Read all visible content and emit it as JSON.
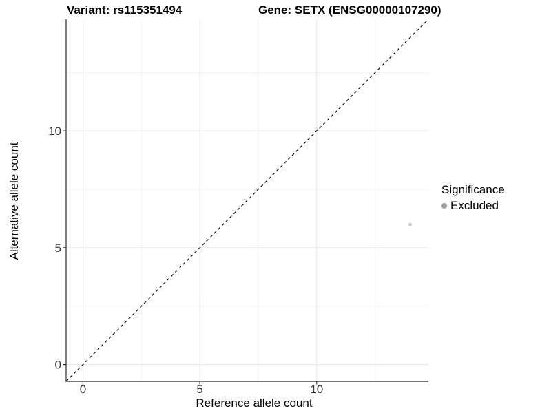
{
  "chart_data": {
    "type": "scatter",
    "title_left": "Variant: rs115351494",
    "title_right": "Gene: SETX (ENSG00000107290)",
    "xlabel": "Reference allele count",
    "ylabel": "Alternative allele count",
    "xlim": [
      -0.72,
      14.78
    ],
    "ylim": [
      -0.72,
      14.78
    ],
    "x_ticks": [
      0,
      5,
      10
    ],
    "y_ticks": [
      0,
      5,
      10
    ],
    "x_minor_ticks": [
      2.5,
      7.5,
      12.5
    ],
    "y_minor_ticks": [
      2.5,
      7.5,
      12.5
    ],
    "grid": "major and minor gridlines, white background",
    "identity_line": {
      "type": "y=x",
      "style": "dashed",
      "color": "#000000"
    },
    "series": [
      {
        "name": "Excluded",
        "color": "#c4c4c4",
        "points": [
          {
            "x": 14,
            "y": 6
          }
        ]
      }
    ],
    "legend": {
      "title": "Significance",
      "position": "right",
      "entries": [
        {
          "label": "Excluded",
          "color": "#a0a0a0"
        }
      ]
    }
  },
  "colors": {
    "background": "#ffffff",
    "grid_major": "#e6e6e6",
    "grid_minor": "#f1f1f1",
    "axis_line": "#4a4a4a",
    "tick_mark": "#333333",
    "tick_label": "#333333"
  }
}
